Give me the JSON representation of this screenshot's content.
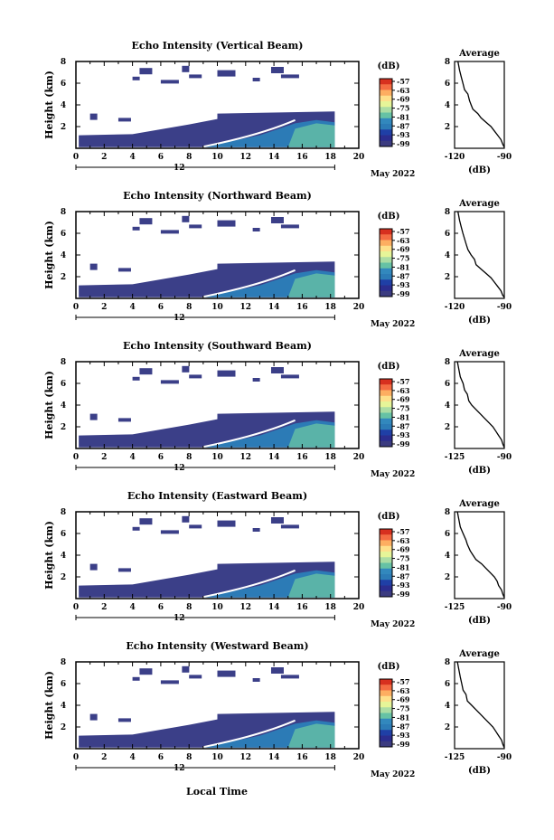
{
  "bottom_label": "Local Time",
  "date_unit": "May 2022",
  "date_day": "12",
  "colorbar_unit": "(dB)",
  "colorbar_ticks": [
    "-57",
    "-63",
    "-69",
    "-75",
    "-81",
    "-87",
    "-93",
    "-99"
  ],
  "colorbar_colors": [
    "#d7301f",
    "#f46d43",
    "#fdae61",
    "#fee08b",
    "#e6f598",
    "#abdda4",
    "#66c2a5",
    "#3288bd",
    "#2c7bb6",
    "#1f3fa6",
    "#2b2d8f",
    "#3b3b80"
  ],
  "panel_color": "#3b3f88",
  "chart_data": [
    {
      "type": "heatmap",
      "title": "Echo Intensity (Vertical Beam)",
      "ylabel": "Height (km)",
      "x_ticks": [
        "0",
        "2",
        "4",
        "6",
        "8",
        "10",
        "12",
        "14",
        "16",
        "18",
        "20"
      ],
      "y_ticks": [
        "2",
        "4",
        "6",
        "8"
      ],
      "xlim": [
        0,
        20
      ],
      "ylim": [
        0,
        8
      ],
      "profile": {
        "title": "Average",
        "xlabel": "(dB)",
        "x_ticks": [
          "-120",
          "-90"
        ],
        "y_ticks": [
          "2",
          "4",
          "6",
          "8"
        ],
        "xlim": [
          -120,
          -90
        ],
        "points": [
          [
            -118,
            8
          ],
          [
            -117,
            7.2
          ],
          [
            -116,
            6.6
          ],
          [
            -115,
            6
          ],
          [
            -114,
            5.4
          ],
          [
            -112,
            5
          ],
          [
            -111,
            4.4
          ],
          [
            -110,
            4
          ],
          [
            -109,
            3.6
          ],
          [
            -106,
            3.2
          ],
          [
            -104,
            2.8
          ],
          [
            -101,
            2.4
          ],
          [
            -98,
            2
          ],
          [
            -96,
            1.6
          ],
          [
            -94,
            1.2
          ],
          [
            -92,
            0.8
          ],
          [
            -91,
            0.4
          ],
          [
            -90,
            0.1
          ]
        ]
      }
    },
    {
      "type": "heatmap",
      "title": "Echo Intensity (Northward Beam)",
      "ylabel": "Height (km)",
      "x_ticks": [
        "0",
        "2",
        "4",
        "6",
        "8",
        "10",
        "12",
        "14",
        "16",
        "18",
        "20"
      ],
      "y_ticks": [
        "2",
        "4",
        "6",
        "8"
      ],
      "xlim": [
        0,
        20
      ],
      "ylim": [
        0,
        8
      ],
      "profile": {
        "title": "Average",
        "xlabel": "(dB)",
        "x_ticks": [
          "-120",
          "-90"
        ],
        "y_ticks": [
          "2",
          "4",
          "6",
          "8"
        ],
        "xlim": [
          -120,
          -90
        ],
        "points": [
          [
            -118,
            8
          ],
          [
            -117,
            7.2
          ],
          [
            -116,
            6.6
          ],
          [
            -115,
            6
          ],
          [
            -114,
            5.5
          ],
          [
            -113,
            5
          ],
          [
            -112,
            4.5
          ],
          [
            -110,
            4
          ],
          [
            -108,
            3.6
          ],
          [
            -107,
            3.1
          ],
          [
            -104,
            2.7
          ],
          [
            -101,
            2.3
          ],
          [
            -98,
            1.9
          ],
          [
            -96,
            1.5
          ],
          [
            -94,
            1.1
          ],
          [
            -92,
            0.7
          ],
          [
            -91,
            0.3
          ],
          [
            -90,
            0.1
          ]
        ]
      }
    },
    {
      "type": "heatmap",
      "title": "Echo Intensity (Southward Beam)",
      "ylabel": "Height (km)",
      "x_ticks": [
        "0",
        "2",
        "4",
        "6",
        "8",
        "10",
        "12",
        "14",
        "16",
        "18",
        "20"
      ],
      "y_ticks": [
        "2",
        "4",
        "6",
        "8"
      ],
      "xlim": [
        0,
        20
      ],
      "ylim": [
        0,
        8
      ],
      "profile": {
        "title": "Average",
        "xlabel": "(dB)",
        "x_ticks": [
          "-125",
          "-90"
        ],
        "y_ticks": [
          "2",
          "4",
          "6",
          "8"
        ],
        "xlim": [
          -125,
          -90
        ],
        "points": [
          [
            -123,
            8
          ],
          [
            -122,
            7.3
          ],
          [
            -121,
            6.6
          ],
          [
            -119,
            6
          ],
          [
            -118,
            5.4
          ],
          [
            -116,
            5
          ],
          [
            -115,
            4.4
          ],
          [
            -113,
            4
          ],
          [
            -110,
            3.6
          ],
          [
            -107,
            3.2
          ],
          [
            -104,
            2.8
          ],
          [
            -101,
            2.4
          ],
          [
            -98,
            2
          ],
          [
            -96,
            1.6
          ],
          [
            -94,
            1.2
          ],
          [
            -92,
            0.8
          ],
          [
            -91,
            0.4
          ],
          [
            -90,
            0.1
          ]
        ]
      }
    },
    {
      "type": "heatmap",
      "title": "Echo Intensity (Eastward Beam)",
      "ylabel": "Height (km)",
      "x_ticks": [
        "0",
        "2",
        "4",
        "6",
        "8",
        "10",
        "12",
        "14",
        "16",
        "18",
        "20"
      ],
      "y_ticks": [
        "2",
        "4",
        "6",
        "8"
      ],
      "xlim": [
        0,
        20
      ],
      "ylim": [
        0,
        8
      ],
      "profile": {
        "title": "Average",
        "xlabel": "(dB)",
        "x_ticks": [
          "-125",
          "-90"
        ],
        "y_ticks": [
          "2",
          "4",
          "6",
          "8"
        ],
        "xlim": [
          -125,
          -90
        ],
        "points": [
          [
            -123,
            8
          ],
          [
            -122,
            7.3
          ],
          [
            -121,
            6.6
          ],
          [
            -119,
            6
          ],
          [
            -117,
            5.4
          ],
          [
            -116,
            5
          ],
          [
            -114,
            4.4
          ],
          [
            -112,
            4
          ],
          [
            -110,
            3.6
          ],
          [
            -106,
            3.2
          ],
          [
            -103,
            2.8
          ],
          [
            -100,
            2.4
          ],
          [
            -97,
            2
          ],
          [
            -95,
            1.6
          ],
          [
            -94,
            1.2
          ],
          [
            -92,
            0.8
          ],
          [
            -91,
            0.4
          ],
          [
            -90,
            0.1
          ]
        ]
      }
    },
    {
      "type": "heatmap",
      "title": "Echo Intensity (Westward Beam)",
      "ylabel": "Height (km)",
      "x_ticks": [
        "0",
        "2",
        "4",
        "6",
        "8",
        "10",
        "12",
        "14",
        "16",
        "18",
        "20"
      ],
      "y_ticks": [
        "2",
        "4",
        "6",
        "8"
      ],
      "xlim": [
        0,
        20
      ],
      "ylim": [
        0,
        8
      ],
      "profile": {
        "title": "Average",
        "xlabel": "(dB)",
        "x_ticks": [
          "-125",
          "-90"
        ],
        "y_ticks": [
          "2",
          "4",
          "6",
          "8"
        ],
        "xlim": [
          -125,
          -90
        ],
        "points": [
          [
            -123,
            8
          ],
          [
            -122,
            7.3
          ],
          [
            -121,
            6.6
          ],
          [
            -120,
            6
          ],
          [
            -119,
            5.4
          ],
          [
            -117,
            5
          ],
          [
            -116,
            4.4
          ],
          [
            -113,
            4
          ],
          [
            -110,
            3.6
          ],
          [
            -107,
            3.2
          ],
          [
            -104,
            2.8
          ],
          [
            -101,
            2.4
          ],
          [
            -98,
            2
          ],
          [
            -96,
            1.6
          ],
          [
            -94,
            1.2
          ],
          [
            -92,
            0.8
          ],
          [
            -91,
            0.4
          ],
          [
            -90,
            0.1
          ]
        ]
      }
    }
  ]
}
